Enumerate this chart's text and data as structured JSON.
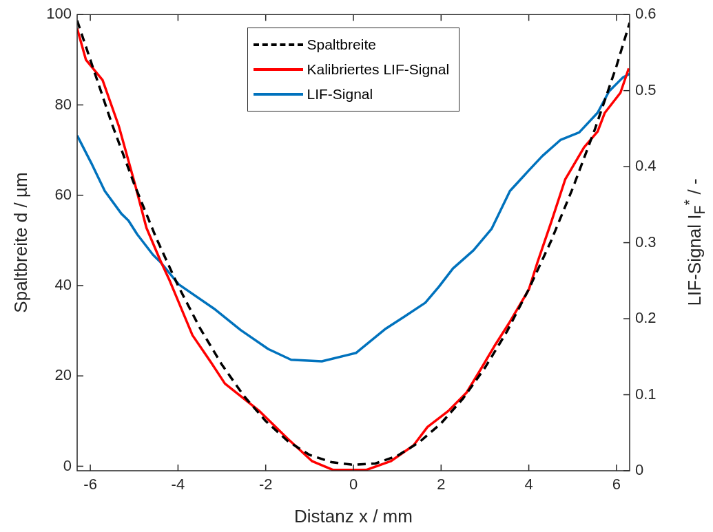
{
  "chart_data": {
    "type": "line",
    "xlabel": "Distanz x / mm",
    "ylabel": "Spaltbreite d / µm",
    "y2label": "LIF-Signal I$_{F}$$^{*}$ / -",
    "xlim": [
      -6.3,
      6.3
    ],
    "xticks": [
      -6,
      -4,
      -2,
      0,
      2,
      4,
      6
    ],
    "ylim": [
      -1,
      100
    ],
    "yticks": [
      0,
      20,
      40,
      60,
      80,
      100
    ],
    "y2lim": [
      0,
      0.6
    ],
    "y2ticks": [
      0,
      0.1,
      0.2,
      0.3,
      0.4,
      0.5,
      0.6
    ],
    "grid": false,
    "legend": "top",
    "marker": "none",
    "series": [
      {
        "name": "Spaltbreite",
        "color": "#000000",
        "line_style": "dashed",
        "x": [
          -6.3,
          -6,
          -5.5,
          -5,
          -4.5,
          -4,
          -3.5,
          -3,
          -2.5,
          -2,
          -1.5,
          -1,
          -0.5,
          0,
          0.5,
          1,
          1.5,
          2,
          2.5,
          3,
          3.5,
          4,
          4.5,
          5,
          5.5,
          6,
          6.3
        ],
        "values": [
          98.7,
          90,
          75.6,
          62.5,
          50.6,
          40,
          30.6,
          22.5,
          15.6,
          10,
          5.6,
          2.5,
          0.9,
          0.3,
          0.6,
          2.3,
          5.3,
          9.5,
          15,
          21.8,
          29.8,
          39.2,
          49.7,
          61.5,
          74.4,
          88.6,
          98.2
        ]
      },
      {
        "name": "Kalibriertes LIF-Signal",
        "color": "#ff0000",
        "line_style": "solid",
        "x": [
          -6.3,
          -6.1,
          -5.72,
          -5.35,
          -4.98,
          -4.72,
          -4.41,
          -4.19,
          -3.67,
          -3.24,
          -2.93,
          -2.14,
          -1.51,
          -0.94,
          -0.47,
          -0.1,
          0.3,
          0.85,
          1.37,
          1.69,
          2.16,
          2.58,
          2.9,
          3.21,
          3.57,
          4.0,
          4.2,
          4.52,
          4.83,
          5.26,
          5.57,
          5.73,
          6.09,
          6.28
        ],
        "values": [
          96.9,
          90,
          85.5,
          75.3,
          62.4,
          52.8,
          45.7,
          41.1,
          29,
          22.9,
          18.3,
          12.2,
          6.2,
          1.1,
          -0.8,
          -0.8,
          -0.8,
          1.1,
          4.6,
          8.7,
          12.2,
          16.3,
          21.4,
          26.5,
          32,
          39.1,
          45.2,
          54.3,
          63.5,
          70.6,
          74.1,
          78.2,
          82.7,
          88.1
        ]
      },
      {
        "name": "LIF-Signal",
        "color": "#0072bd",
        "line_style": "solid",
        "axis": "y2",
        "x": [
          -6.3,
          -5.98,
          -5.67,
          -5.29,
          -5.13,
          -4.93,
          -4.57,
          -4.41,
          -3.98,
          -3.15,
          -2.57,
          -1.94,
          -1.42,
          -0.72,
          0.06,
          0.74,
          1.17,
          1.64,
          1.95,
          2.27,
          2.74,
          3.15,
          3.57,
          4.0,
          4.31,
          4.72,
          5.15,
          5.57,
          5.83,
          6.14,
          6.3
        ],
        "values": [
          0.441,
          0.405,
          0.368,
          0.338,
          0.329,
          0.311,
          0.284,
          0.275,
          0.245,
          0.212,
          0.185,
          0.16,
          0.146,
          0.144,
          0.155,
          0.187,
          0.203,
          0.221,
          0.242,
          0.266,
          0.29,
          0.318,
          0.368,
          0.395,
          0.414,
          0.435,
          0.445,
          0.471,
          0.499,
          0.517,
          0.522
        ]
      }
    ]
  }
}
